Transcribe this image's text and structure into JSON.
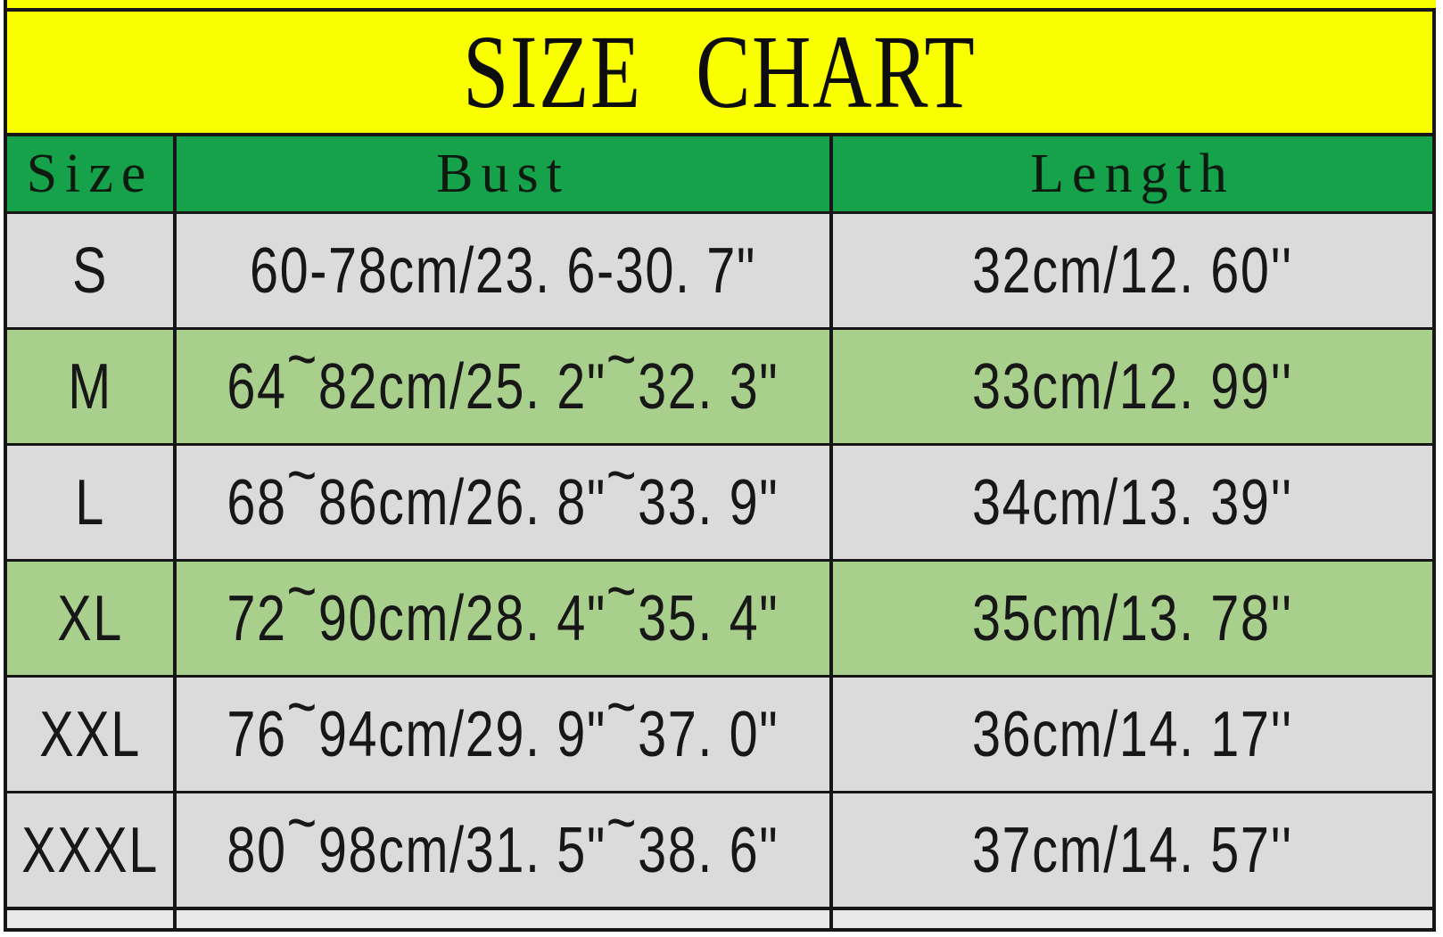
{
  "title": "SIZE CHART",
  "chart_data": {
    "type": "table",
    "title": "SIZE CHART",
    "columns": [
      "Size",
      "Bust",
      "Length"
    ],
    "rows": [
      [
        "S",
        "60-78cm/23. 6-30. 7\"",
        "32cm/12. 60''"
      ],
      [
        "M",
        "64~82cm/25. 2\"~32. 3\"",
        "33cm/12. 99''"
      ],
      [
        "L",
        "68~86cm/26. 8\"~33. 9\"",
        "34cm/13. 39''"
      ],
      [
        "XL",
        "72~90cm/28. 4\"~35. 4\"",
        "35cm/13. 78''"
      ],
      [
        "XXL",
        "76~94cm/29. 9\"~37. 0\"",
        "36cm/14. 17''"
      ],
      [
        "XXXL",
        "80~98cm/31. 5\"~38. 6\"",
        "37cm/14. 57''"
      ]
    ],
    "row_shading": [
      "gray",
      "green",
      "gray",
      "green",
      "gray",
      "gray"
    ],
    "layout": {
      "title_band": "yellow",
      "header_row": "green",
      "grid": "black borders"
    }
  },
  "colors": {
    "banner_yellow": "#FAFF00",
    "header_green": "#16A24A",
    "row_green": "#A9CF8D",
    "row_gray": "#DBDBDB",
    "border_black": "#161616",
    "text_black": "#141414"
  }
}
